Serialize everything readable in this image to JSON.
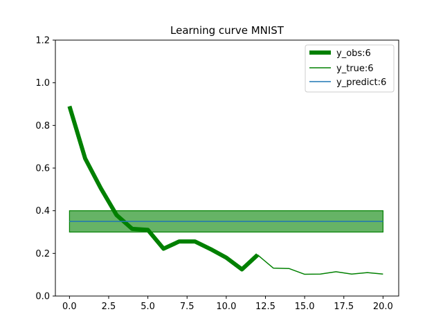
{
  "chart_data": {
    "type": "line",
    "title": "Learning curve MNIST",
    "xlabel": "",
    "ylabel": "",
    "xlim": [
      -0.9,
      21.0
    ],
    "ylim": [
      0.0,
      1.2
    ],
    "xticks": [
      0.0,
      2.5,
      5.0,
      7.5,
      10.0,
      12.5,
      15.0,
      17.5,
      20.0
    ],
    "xtick_labels": [
      "0.0",
      "2.5",
      "5.0",
      "7.5",
      "10.0",
      "12.5",
      "15.0",
      "17.5",
      "20.0"
    ],
    "yticks": [
      0.0,
      0.2,
      0.4,
      0.6,
      0.8,
      1.0,
      1.2
    ],
    "ytick_labels": [
      "0.0",
      "0.2",
      "0.4",
      "0.6",
      "0.8",
      "1.0",
      "1.2"
    ],
    "grid": false,
    "legend_position": "top-right",
    "series": [
      {
        "name": "y_obs:6",
        "color": "#008000",
        "style": "thick",
        "x": [
          0,
          1,
          2,
          3,
          4,
          5,
          6,
          7,
          8,
          9,
          10,
          11,
          12
        ],
        "y": [
          0.89,
          0.645,
          0.505,
          0.38,
          0.315,
          0.31,
          0.222,
          0.256,
          0.256,
          0.22,
          0.18,
          0.125,
          0.193
        ]
      },
      {
        "name": "y_true:6",
        "color": "#008000",
        "style": "thin",
        "x": [
          0,
          1,
          2,
          3,
          4,
          5,
          6,
          7,
          8,
          9,
          10,
          11,
          12,
          13,
          14,
          15,
          16,
          17,
          18,
          19,
          20
        ],
        "y": [
          0.89,
          0.645,
          0.505,
          0.38,
          0.315,
          0.31,
          0.222,
          0.256,
          0.256,
          0.22,
          0.18,
          0.125,
          0.193,
          0.131,
          0.129,
          0.102,
          0.103,
          0.114,
          0.103,
          0.11,
          0.103
        ]
      },
      {
        "name": "y_predict:6",
        "color": "#1f77b4",
        "style": "thin",
        "x": [
          0,
          20
        ],
        "y": [
          0.35,
          0.35
        ]
      }
    ],
    "band": {
      "x": [
        0,
        20
      ],
      "y_low": 0.3,
      "y_high": 0.4,
      "color": "#008000",
      "opacity": 0.6
    }
  }
}
